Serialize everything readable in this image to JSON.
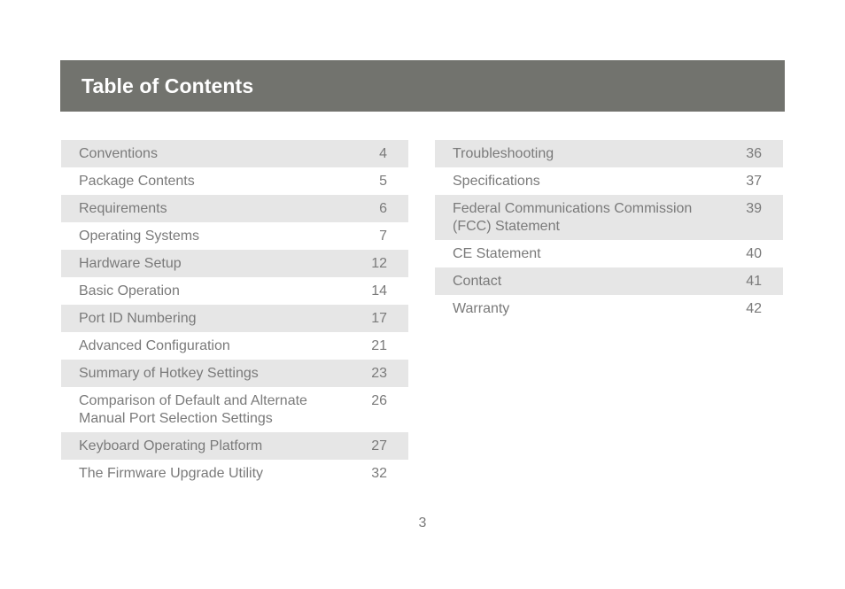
{
  "header": {
    "title": "Table of Contents"
  },
  "toc": {
    "left": [
      {
        "title": "Conventions",
        "page": "4"
      },
      {
        "title": "Package Contents",
        "page": "5"
      },
      {
        "title": "Requirements",
        "page": "6"
      },
      {
        "title": "Operating Systems",
        "page": "7"
      },
      {
        "title": "Hardware Setup",
        "page": "12"
      },
      {
        "title": "Basic Operation",
        "page": "14"
      },
      {
        "title": "Port ID Numbering",
        "page": "17"
      },
      {
        "title": "Advanced Configuration",
        "page": "21"
      },
      {
        "title": "Summary of Hotkey Settings",
        "page": "23"
      },
      {
        "title": "Comparison of Default and Alternate Manual Port Selection Settings",
        "page": "26"
      },
      {
        "title": "Keyboard Operating Platform",
        "page": "27"
      },
      {
        "title": "The Firmware Upgrade Utility",
        "page": "32"
      }
    ],
    "right": [
      {
        "title": "Troubleshooting",
        "page": "36"
      },
      {
        "title": "Specifications",
        "page": "37"
      },
      {
        "title": "Federal Communications Commission (FCC) Statement",
        "page": "39"
      },
      {
        "title": "CE Statement",
        "page": "40"
      },
      {
        "title": "Contact",
        "page": "41"
      },
      {
        "title": "Warranty",
        "page": "42"
      }
    ]
  },
  "footer": {
    "page_number": "3"
  },
  "colors": {
    "header_bg": "#72736e",
    "header_text": "#ffffff",
    "row_shade": "#e6e6e6",
    "text": "#7a7a7a"
  }
}
